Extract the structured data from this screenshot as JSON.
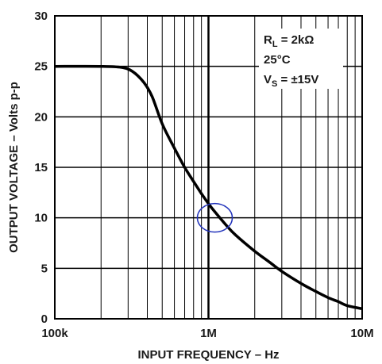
{
  "chart_data": {
    "type": "line",
    "x_scale": "log",
    "grid": true,
    "xlim": [
      100000,
      10000000
    ],
    "ylim": [
      0,
      30
    ],
    "xlabel": "INPUT FREQUENCY – Hz",
    "ylabel": "OUTPUT VOLTAGE – Volts p-p",
    "x_ticks": [
      {
        "value": 100000,
        "label": "100k"
      },
      {
        "value": 1000000,
        "label": "1M"
      },
      {
        "value": 10000000,
        "label": "10M"
      }
    ],
    "y_ticks": [
      {
        "value": 0,
        "label": "0"
      },
      {
        "value": 5,
        "label": "5"
      },
      {
        "value": 10,
        "label": "10"
      },
      {
        "value": 15,
        "label": "15"
      },
      {
        "value": 20,
        "label": "20"
      },
      {
        "value": 25,
        "label": "25"
      },
      {
        "value": 30,
        "label": "30"
      }
    ],
    "annotations": {
      "rl": {
        "main": "R",
        "sub": "L",
        "rest": " = 2kΩ"
      },
      "temp": {
        "main": "25",
        "deg": "°",
        "rest": "C"
      },
      "vs": {
        "main": "V",
        "sub": "S",
        "rest": " = ±15V"
      }
    },
    "highlight_circle": {
      "x": 1100000,
      "y": 10,
      "color": "#2233bb"
    },
    "series": [
      {
        "color": "#000000",
        "x": [
          100000,
          200000,
          270000,
          320000,
          380000,
          430000,
          500000,
          600000,
          700000,
          800000,
          900000,
          1000000,
          1100000,
          1300000,
          1500000,
          2000000,
          2500000,
          3000000,
          4000000,
          5000000,
          6000000,
          7000000,
          8000000,
          10000000
        ],
        "y": [
          25,
          25,
          24.9,
          24.5,
          23.4,
          22.0,
          19.3,
          16.9,
          15.0,
          13.6,
          12.4,
          11.4,
          10.6,
          9.3,
          8.3,
          6.7,
          5.6,
          4.7,
          3.5,
          2.7,
          2.1,
          1.7,
          1.3,
          1.0
        ]
      }
    ]
  }
}
